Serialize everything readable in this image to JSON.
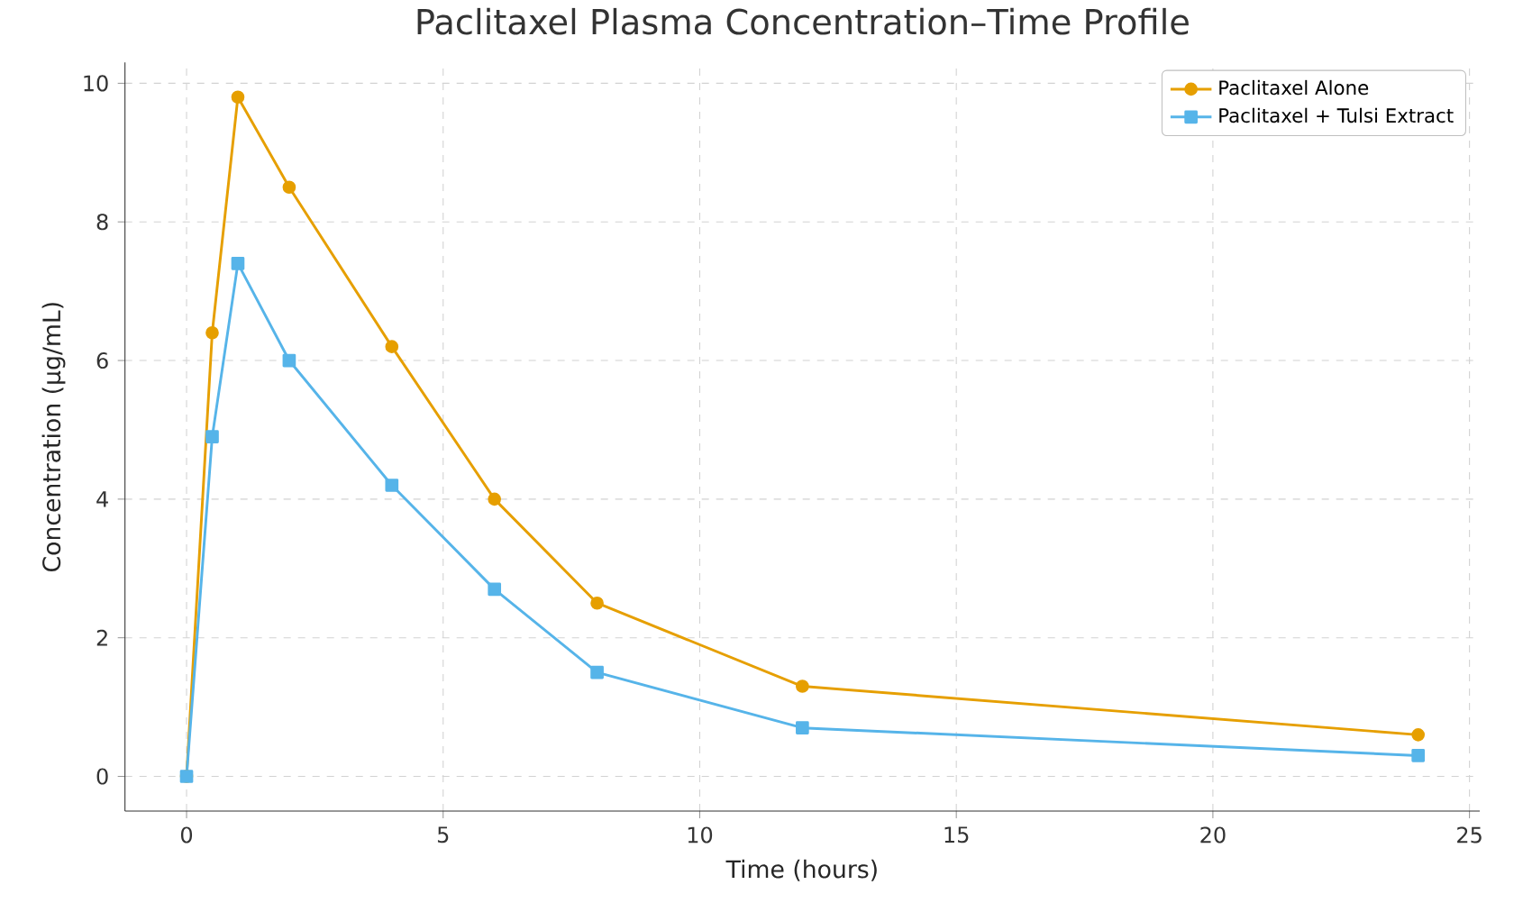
{
  "chart_data": {
    "type": "line",
    "title": "Paclitaxel Plasma Concentration–Time Profile",
    "xlabel": "Time (hours)",
    "ylabel": "Concentration (µg/mL)",
    "x": [
      0,
      0.5,
      1,
      2,
      4,
      6,
      8,
      12,
      24
    ],
    "series": [
      {
        "name": "Paclitaxel Alone",
        "color": "#e69f00",
        "marker": "circle",
        "values": [
          0,
          6.4,
          9.8,
          8.5,
          6.2,
          4.0,
          2.5,
          1.3,
          0.6
        ]
      },
      {
        "name": "Paclitaxel + Tulsi Extract",
        "color": "#56b4e9",
        "marker": "square",
        "values": [
          0,
          4.9,
          7.4,
          6.0,
          4.2,
          2.7,
          1.5,
          0.7,
          0.3
        ]
      }
    ],
    "xlim": [
      -1.2,
      25.2
    ],
    "ylim": [
      -0.5,
      10.3
    ],
    "xticks": [
      0,
      5,
      10,
      15,
      20,
      25
    ],
    "yticks": [
      0,
      2,
      4,
      6,
      8,
      10
    ],
    "grid": true,
    "legend": "top right",
    "line_style": "solid"
  }
}
